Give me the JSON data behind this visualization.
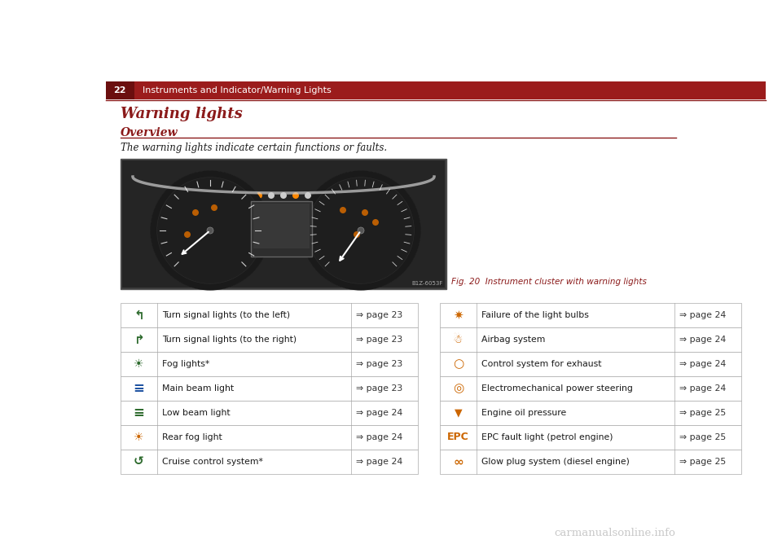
{
  "page_bg": "#ffffff",
  "header_bg": "#9b1c1c",
  "header_num_bg": "#6b0f0f",
  "header_num": "22",
  "header_text": "Instruments and Indicator/Warning Lights",
  "section_title": "Warning lights",
  "subsection_title": "Overview",
  "description": "The warning lights indicate certain functions or faults.",
  "fig_caption": "Fig. 20  Instrument cluster with warning lights",
  "img_ref": "B1Z-6053F",
  "left_table": [
    [
      "Turn signal lights (to the left)",
      "⇒ page 23"
    ],
    [
      "Turn signal lights (to the right)",
      "⇒ page 23"
    ],
    [
      "Fog lights*",
      "⇒ page 23"
    ],
    [
      "Main beam light",
      "⇒ page 23"
    ],
    [
      "Low beam light",
      "⇒ page 24"
    ],
    [
      "Rear fog light",
      "⇒ page 24"
    ],
    [
      "Cruise control system*",
      "⇒ page 24"
    ]
  ],
  "right_table": [
    [
      "Failure of the light bulbs",
      "⇒ page 24"
    ],
    [
      "Airbag system",
      "⇒ page 24"
    ],
    [
      "Control system for exhaust",
      "⇒ page 24"
    ],
    [
      "Electromechanical power steering",
      "⇒ page 24"
    ],
    [
      "Engine oil pressure",
      "⇒ page 25"
    ],
    [
      "EPC fault light (petrol engine)",
      "⇒ page 25"
    ],
    [
      "Glow plug system (diesel engine)",
      "⇒ page 25"
    ]
  ],
  "watermark": "carmanualsonline.info",
  "title_color": "#8b1a1a",
  "subsection_color": "#8b1a1a",
  "divider_color": "#8b1a1a",
  "table_border_color": "#aaaaaa",
  "text_color": "#1a1a1a",
  "page_ref_color": "#333333",
  "icon_color_green": "#2d6a2d",
  "icon_color_orange": "#cc6600",
  "icon_color_blue": "#1a4fa0"
}
